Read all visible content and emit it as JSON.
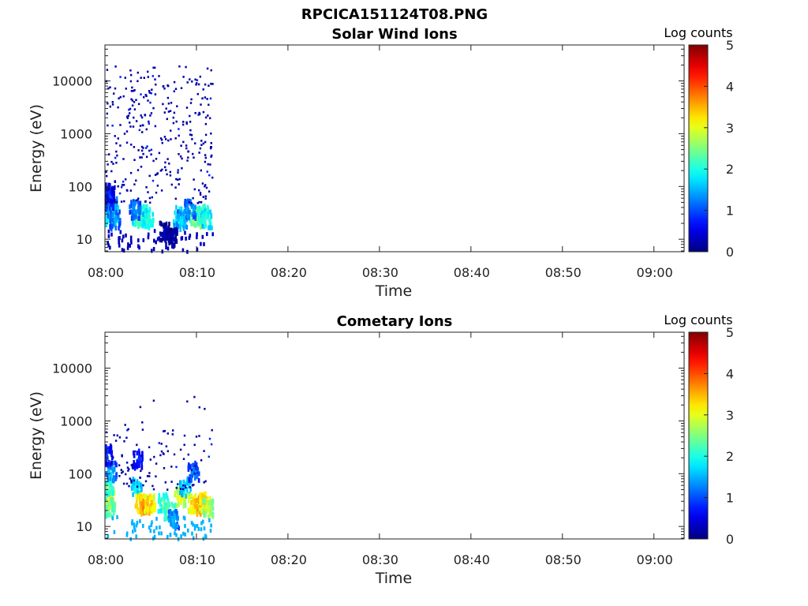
{
  "figure_title": "RPCICA151124T08.PNG",
  "chart_data": [
    {
      "type": "heatmap",
      "title": "Solar Wind Ions",
      "xlabel": "Time",
      "ylabel": "Energy (eV)",
      "x_ticks": [
        "08:00",
        "08:10",
        "08:20",
        "08:30",
        "08:40",
        "08:50",
        "09:00"
      ],
      "x_range_minutes": [
        0,
        63.3
      ],
      "y_ticks": [
        "10",
        "100",
        "1000",
        "10000"
      ],
      "y_range_eV": [
        5.8,
        48000
      ],
      "y_scale": "log",
      "colorbar": {
        "label": "Log counts",
        "ticks": [
          "0",
          "1",
          "2",
          "3",
          "4",
          "5"
        ],
        "range": [
          0,
          5
        ],
        "colormap": "jet"
      },
      "data_time_extent_minutes": [
        0,
        11.7
      ],
      "data": [
        {
          "t": 0.5,
          "e": 30,
          "v": 2.2
        },
        {
          "t": 0.8,
          "e": 35,
          "v": 2.4
        },
        {
          "t": 0.6,
          "e": 45,
          "v": 1.8
        },
        {
          "t": 0.3,
          "e": 60,
          "v": 1.2
        },
        {
          "t": 1.0,
          "e": 25,
          "v": 1.5
        },
        {
          "t": 0.4,
          "e": 80,
          "v": 0.8
        },
        {
          "t": 3.5,
          "e": 30,
          "v": 2.4
        },
        {
          "t": 4.0,
          "e": 28,
          "v": 2.8
        },
        {
          "t": 4.3,
          "e": 32,
          "v": 2.6
        },
        {
          "t": 4.6,
          "e": 26,
          "v": 2.2
        },
        {
          "t": 3.2,
          "e": 40,
          "v": 1.5
        },
        {
          "t": 6.5,
          "e": 15,
          "v": 0.4
        },
        {
          "t": 7.2,
          "e": 12,
          "v": 0.3
        },
        {
          "t": 8.0,
          "e": 30,
          "v": 2.2
        },
        {
          "t": 8.3,
          "e": 25,
          "v": 1.8
        },
        {
          "t": 9.8,
          "e": 30,
          "v": 2.8
        },
        {
          "t": 10.3,
          "e": 28,
          "v": 3.0
        },
        {
          "t": 10.6,
          "e": 32,
          "v": 2.5
        },
        {
          "t": 11.0,
          "e": 26,
          "v": 2.2
        },
        {
          "t": 9.2,
          "e": 40,
          "v": 1.6
        }
      ]
    },
    {
      "type": "heatmap",
      "title": "Cometary Ions",
      "xlabel": "Time",
      "ylabel": "Energy (eV)",
      "x_ticks": [
        "08:00",
        "08:10",
        "08:20",
        "08:30",
        "08:40",
        "08:50",
        "09:00"
      ],
      "x_range_minutes": [
        0,
        63.3
      ],
      "y_ticks": [
        "10",
        "100",
        "1000",
        "10000"
      ],
      "y_range_eV": [
        5.8,
        48000
      ],
      "y_scale": "log",
      "colorbar": {
        "label": "Log counts",
        "ticks": [
          "0",
          "1",
          "2",
          "3",
          "4",
          "5"
        ],
        "range": [
          0,
          5
        ],
        "colormap": "jet"
      },
      "data_time_extent_minutes": [
        0,
        11.7
      ],
      "data": [
        {
          "t": 0.5,
          "e": 35,
          "v": 3.3
        },
        {
          "t": 0.3,
          "e": 60,
          "v": 2.4
        },
        {
          "t": 0.6,
          "e": 120,
          "v": 1.6
        },
        {
          "t": 0.4,
          "e": 25,
          "v": 2.6
        },
        {
          "t": 0.2,
          "e": 250,
          "v": 1.0
        },
        {
          "t": 3.3,
          "e": 60,
          "v": 2.0
        },
        {
          "t": 3.8,
          "e": 30,
          "v": 3.6
        },
        {
          "t": 4.3,
          "e": 28,
          "v": 3.9
        },
        {
          "t": 4.8,
          "e": 30,
          "v": 3.5
        },
        {
          "t": 3.5,
          "e": 200,
          "v": 1.0
        },
        {
          "t": 6.3,
          "e": 30,
          "v": 2.4
        },
        {
          "t": 7.0,
          "e": 22,
          "v": 2.6
        },
        {
          "t": 7.4,
          "e": 15,
          "v": 1.6
        },
        {
          "t": 8.1,
          "e": 40,
          "v": 3.2
        },
        {
          "t": 8.7,
          "e": 60,
          "v": 2.0
        },
        {
          "t": 9.5,
          "e": 30,
          "v": 3.4
        },
        {
          "t": 10.2,
          "e": 28,
          "v": 3.9
        },
        {
          "t": 10.8,
          "e": 32,
          "v": 3.6
        },
        {
          "t": 11.2,
          "e": 25,
          "v": 3.0
        },
        {
          "t": 9.6,
          "e": 120,
          "v": 1.4
        }
      ]
    }
  ]
}
